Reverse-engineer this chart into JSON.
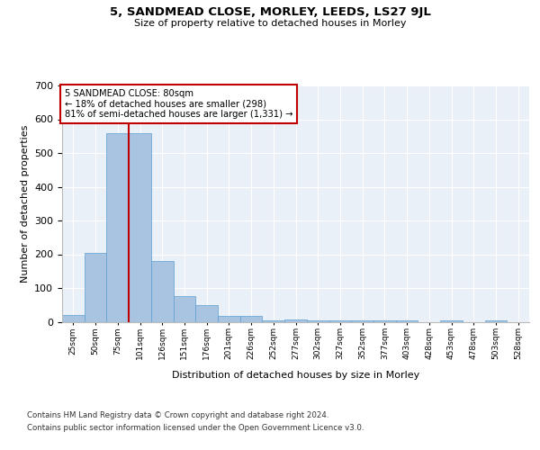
{
  "title": "5, SANDMEAD CLOSE, MORLEY, LEEDS, LS27 9JL",
  "subtitle": "Size of property relative to detached houses in Morley",
  "xlabel": "Distribution of detached houses by size in Morley",
  "ylabel": "Number of detached properties",
  "footer_line1": "Contains HM Land Registry data © Crown copyright and database right 2024.",
  "footer_line2": "Contains public sector information licensed under the Open Government Licence v3.0.",
  "categories": [
    "25sqm",
    "50sqm",
    "75sqm",
    "101sqm",
    "126sqm",
    "151sqm",
    "176sqm",
    "201sqm",
    "226sqm",
    "252sqm",
    "277sqm",
    "302sqm",
    "327sqm",
    "352sqm",
    "377sqm",
    "403sqm",
    "428sqm",
    "453sqm",
    "478sqm",
    "503sqm",
    "528sqm"
  ],
  "values": [
    20,
    205,
    560,
    560,
    180,
    75,
    50,
    18,
    18,
    5,
    8,
    5,
    5,
    5,
    5,
    5,
    0,
    5,
    0,
    5,
    0
  ],
  "bar_color": "#a8c4e0",
  "bar_edge_color": "#5a9fd4",
  "background_color": "#eaf0f8",
  "grid_color": "#ffffff",
  "vline_x": 2.5,
  "vline_color": "#c00000",
  "annotation_text": "5 SANDMEAD CLOSE: 80sqm\n← 18% of detached houses are smaller (298)\n81% of semi-detached houses are larger (1,331) →",
  "annotation_box_color": "white",
  "annotation_box_edge": "#c00000",
  "ylim": [
    0,
    700
  ],
  "yticks": [
    0,
    100,
    200,
    300,
    400,
    500,
    600,
    700
  ]
}
